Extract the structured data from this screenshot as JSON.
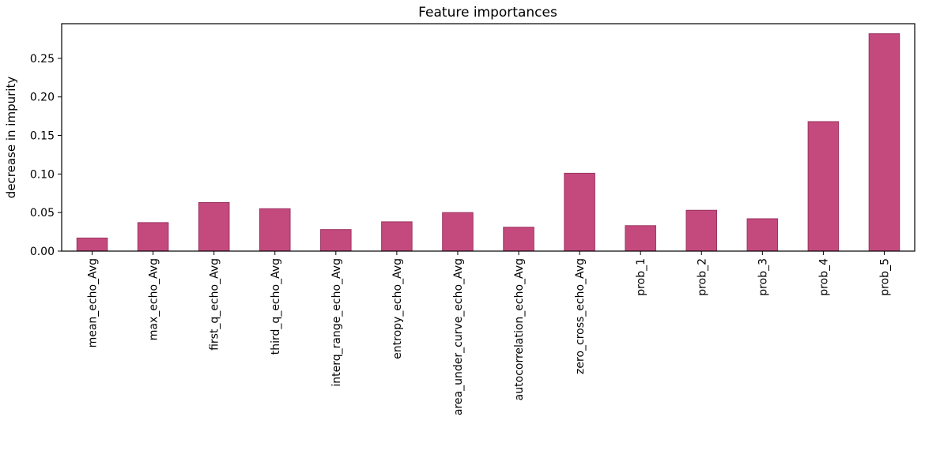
{
  "chart_data": {
    "type": "bar",
    "title": "Feature importances",
    "xlabel": "",
    "ylabel": "decrease in impurity",
    "categories": [
      "mean_echo_Avg",
      "max_echo_Avg",
      "first_q_echo_Avg",
      "third_q_echo_Avg",
      "interq_range_echo_Avg",
      "entropy_echo_Avg",
      "area_under_curve_echo_Avg",
      "autocorrelation_echo_Avg",
      "zero_cross_echo_Avg",
      "prob_1",
      "prob_2",
      "prob_3",
      "prob_4",
      "prob_5"
    ],
    "values": [
      0.017,
      0.037,
      0.063,
      0.055,
      0.028,
      0.038,
      0.05,
      0.031,
      0.101,
      0.033,
      0.053,
      0.042,
      0.168,
      0.282
    ],
    "ylim": [
      0,
      0.295
    ],
    "yticks": [
      0.0,
      0.05,
      0.1,
      0.15,
      0.2,
      0.25
    ],
    "ytick_labels": [
      "0.00",
      "0.05",
      "0.10",
      "0.15",
      "0.20",
      "0.25"
    ],
    "grid": false,
    "colors": {
      "bar_fill": "#c44a7d",
      "bar_edge": "#9b3462"
    }
  }
}
